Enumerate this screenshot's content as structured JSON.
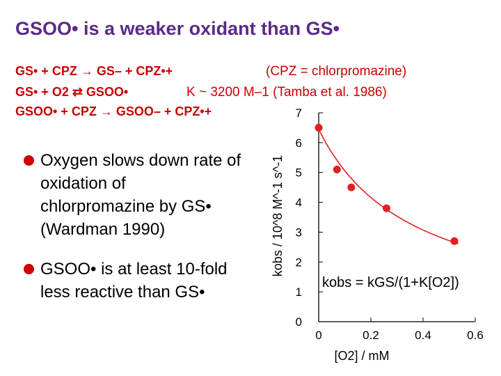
{
  "slide": {
    "title": "GSOO• is a weaker oxidant than GS•",
    "reactions": [
      "GS• + CPZ → GS– + CPZ•+",
      "GS• + O2 ⇄ GSOO•",
      "GSOO• + CPZ → GSOO– + CPZ•+"
    ],
    "notes": [
      "(CPZ = chlorpromazine)",
      "K ~ 3200 M–1 (Tamba et al. 1986)"
    ],
    "bullets": [
      "Oxygen slows down rate of oxidation of chlorpromazine by GS• (Wardman 1990)",
      "GSOO• is at least 10-fold less reactive than GS•"
    ]
  },
  "chart_data": {
    "type": "scatter",
    "title": "",
    "xlabel": "[O2] / mM",
    "ylabel": "kobs / 10^8 M^-1 s^-1",
    "xlim": [
      0,
      0.6
    ],
    "ylim": [
      0,
      7
    ],
    "x_ticks": [
      "0",
      "0.2",
      "0.4",
      "0.6"
    ],
    "y_ticks": [
      "0",
      "1",
      "2",
      "3",
      "4",
      "5",
      "6",
      "7"
    ],
    "grid": false,
    "points": [
      {
        "x": 0.0,
        "y": 6.5
      },
      {
        "x": 0.07,
        "y": 5.1
      },
      {
        "x": 0.125,
        "y": 4.5
      },
      {
        "x": 0.26,
        "y": 3.8
      },
      {
        "x": 0.52,
        "y": 2.7
      }
    ],
    "fit": {
      "label": "kobs = kGS/(1+K[O2])",
      "kGS": 6.45,
      "K": 2.75
    },
    "colors": {
      "points": "#e02020",
      "fit": "#e02020",
      "title": "#5b2a86",
      "equations": "#cc0000"
    }
  }
}
